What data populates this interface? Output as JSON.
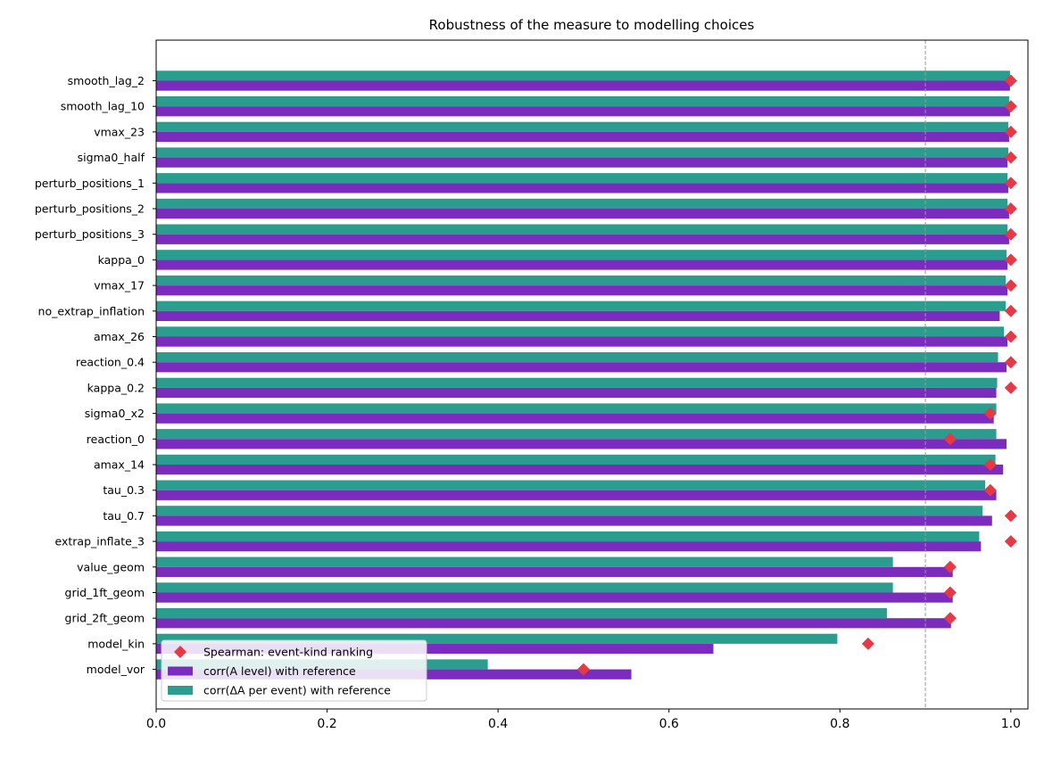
{
  "chart_data": {
    "type": "bar",
    "orientation": "horizontal",
    "title": "Robustness of the measure to modelling choices",
    "xlabel": "",
    "ylabel": "",
    "xlim": [
      0.0,
      1.02
    ],
    "xticks": [
      "0.0",
      "0.2",
      "0.4",
      "0.6",
      "0.8",
      "1.0"
    ],
    "reference_line": 0.9,
    "grid": false,
    "legend_position": "lower-left",
    "categories": [
      "smooth_lag_2",
      "smooth_lag_10",
      "vmax_23",
      "sigma0_half",
      "perturb_positions_1",
      "perturb_positions_2",
      "perturb_positions_3",
      "kappa_0",
      "vmax_17",
      "no_extrap_inflation",
      "amax_26",
      "reaction_0.4",
      "kappa_0.2",
      "sigma0_x2",
      "reaction_0",
      "amax_14",
      "tau_0.3",
      "tau_0.7",
      "extrap_inflate_3",
      "value_geom",
      "grid_1ft_geom",
      "grid_2ft_geom",
      "model_kin",
      "model_vor"
    ],
    "series": [
      {
        "name": "corr(ΔA per event) with reference",
        "kind": "bar",
        "color": "#2a9d8f",
        "values": [
          0.999,
          0.998,
          0.997,
          0.997,
          0.996,
          0.996,
          0.996,
          0.995,
          0.994,
          0.994,
          0.992,
          0.985,
          0.984,
          0.983,
          0.983,
          0.982,
          0.97,
          0.967,
          0.963,
          0.862,
          0.862,
          0.855,
          0.797,
          0.388
        ]
      },
      {
        "name": "corr(A level) with reference",
        "kind": "bar",
        "color": "#7b2cbf",
        "values": [
          0.999,
          0.999,
          0.998,
          0.996,
          0.997,
          0.998,
          0.998,
          0.996,
          0.996,
          0.987,
          0.996,
          0.995,
          0.983,
          0.98,
          0.995,
          0.991,
          0.983,
          0.978,
          0.965,
          0.932,
          0.932,
          0.93,
          0.652,
          0.556
        ]
      },
      {
        "name": "Spearman: event-kind ranking",
        "kind": "scatter",
        "marker": "diamond",
        "color": "#e63946",
        "values": [
          1.0,
          1.0,
          1.0,
          1.0,
          1.0,
          1.0,
          1.0,
          1.0,
          1.0,
          1.0,
          1.0,
          1.0,
          1.0,
          0.976,
          0.929,
          0.976,
          0.976,
          1.0,
          1.0,
          0.929,
          0.929,
          0.929,
          0.833,
          0.5
        ]
      }
    ],
    "legend_order": [
      "Spearman: event-kind ranking",
      "corr(A level) with reference",
      "corr(ΔA per event) with reference"
    ]
  }
}
